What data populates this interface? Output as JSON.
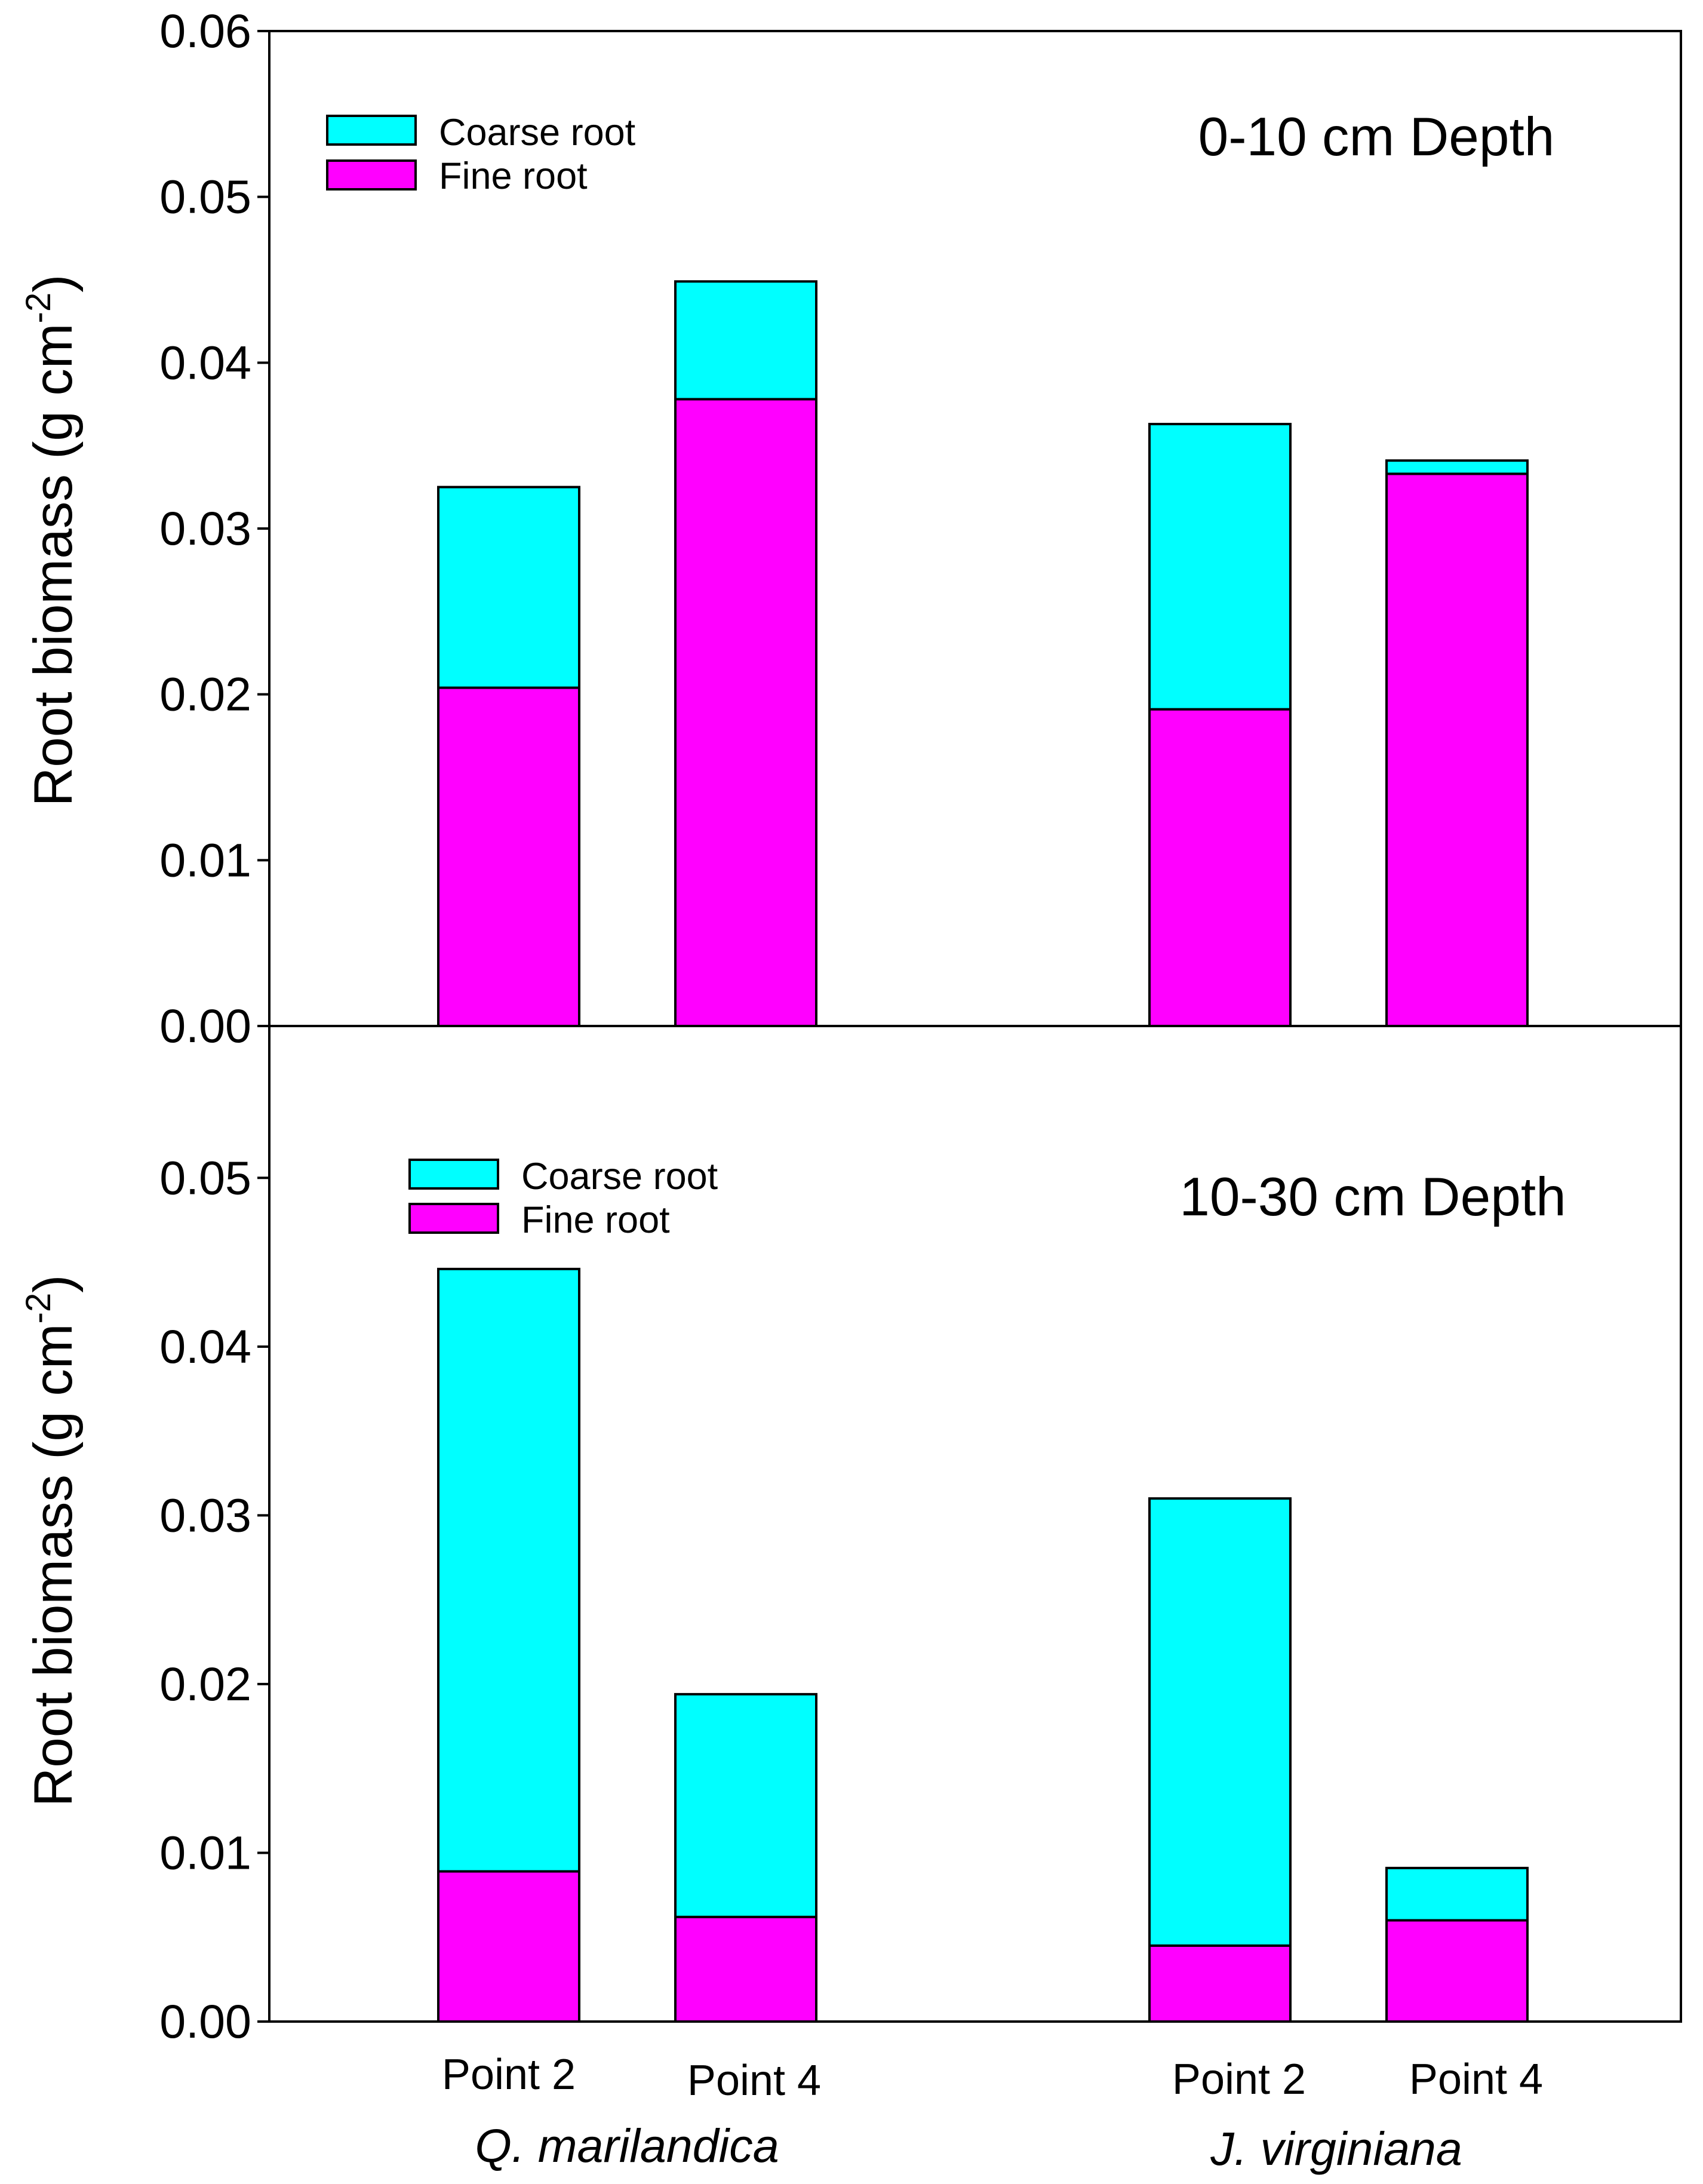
{
  "chart_data": {
    "type": "bar",
    "stacked": true,
    "categories": [
      "Point 2",
      "Point 4",
      "Point 2",
      "Point 4"
    ],
    "groups": [
      "Q. marilandica",
      "J. virginiana"
    ],
    "colors": {
      "coarse": "#00ffff",
      "fine": "#ff00ff",
      "axis": "#000000"
    },
    "legend": [
      "Coarse root",
      "Fine root"
    ],
    "y_title": {
      "main": "Root biomass (g cm",
      "sup": "-2",
      "close": ")"
    },
    "panels": [
      {
        "title": "0-10 cm Depth",
        "ylim": [
          0,
          0.06
        ],
        "yticks": [
          "0.00",
          "0.01",
          "0.02",
          "0.03",
          "0.04",
          "0.05",
          "0.06"
        ],
        "series": [
          {
            "name": "Fine root",
            "values": [
              0.0204,
              0.0378,
              0.0191,
              0.0333
            ]
          },
          {
            "name": "Coarse root",
            "values": [
              0.0121,
              0.0071,
              0.0172,
              0.0008
            ]
          }
        ]
      },
      {
        "title": "10-30 cm Depth",
        "ylim": [
          0,
          0.059
        ],
        "yticks": [
          "0.00",
          "0.01",
          "0.02",
          "0.03",
          "0.04",
          "0.05"
        ],
        "series": [
          {
            "name": "Fine root",
            "values": [
              0.0089,
              0.0062,
              0.0045,
              0.006
            ]
          },
          {
            "name": "Coarse root",
            "values": [
              0.0357,
              0.0132,
              0.0265,
              0.0031
            ]
          }
        ]
      }
    ]
  }
}
